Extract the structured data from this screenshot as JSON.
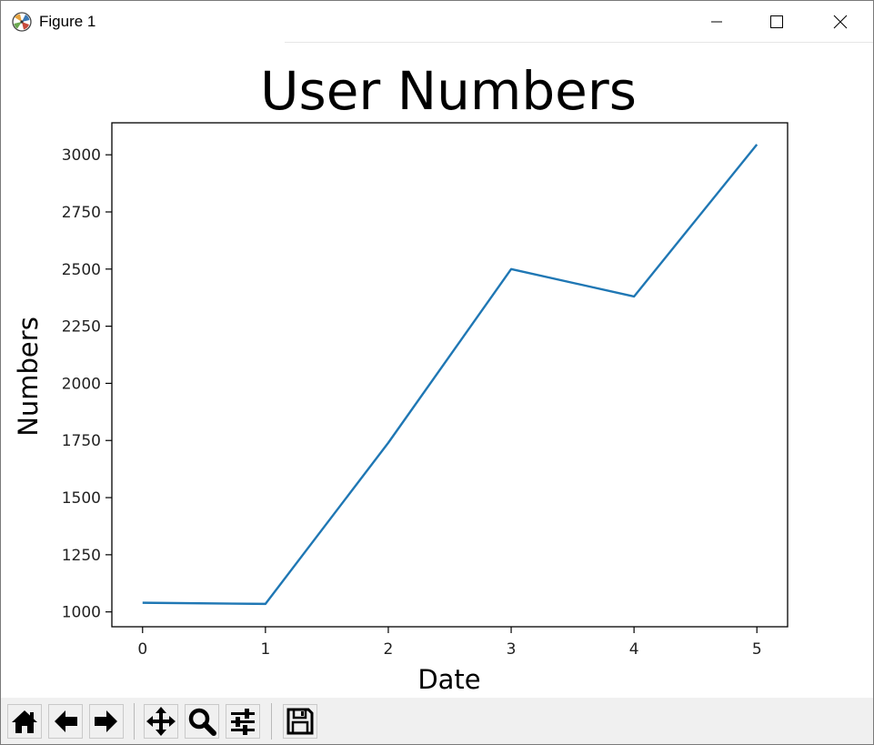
{
  "window": {
    "title": "Figure 1"
  },
  "titlebar_icons": [
    "app-icon",
    "minimize-icon",
    "maximize-icon",
    "close-icon"
  ],
  "toolbar": {
    "buttons": [
      "home-icon",
      "back-arrow-icon",
      "forward-arrow-icon",
      "pan-icon",
      "zoom-icon",
      "configure-subplots-icon",
      "save-icon"
    ]
  },
  "colors": {
    "line": "#1f77b4",
    "toolbar_bg": "#f0f0f0"
  },
  "chart_data": {
    "type": "line",
    "title": "User Numbers",
    "xlabel": "Date",
    "ylabel": "Numbers",
    "x": [
      0,
      1,
      2,
      3,
      4,
      5
    ],
    "series": [
      {
        "values": [
          1040,
          1035,
          1740,
          2500,
          2380,
          3045
        ]
      }
    ],
    "xlim": [
      -0.25,
      5.25
    ],
    "ylim": [
      935,
      3140
    ],
    "xticks": [
      0,
      1,
      2,
      3,
      4,
      5
    ],
    "yticks": [
      1000,
      1250,
      1500,
      1750,
      2000,
      2250,
      2500,
      2750,
      3000
    ],
    "grid": false
  }
}
